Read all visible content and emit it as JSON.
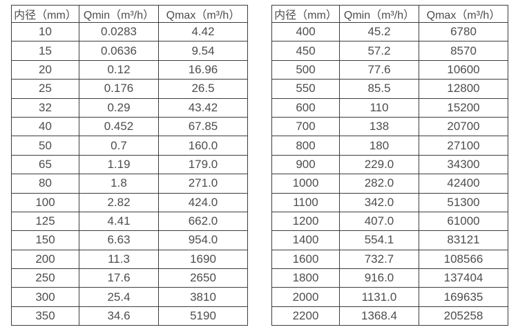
{
  "page": {
    "background": "#ffffff",
    "border_color": "#3c3c3c",
    "text_color": "#4d4d4d"
  },
  "chart_data": [
    {
      "type": "table",
      "name": "flow-rate-table-small-diameters",
      "columns": [
        "内径（mm）",
        "Qmin（m³/h）",
        "Qmax（m³/h）"
      ],
      "rows": [
        [
          "10",
          "0.0283",
          "4.42"
        ],
        [
          "15",
          "0.0636",
          "9.54"
        ],
        [
          "20",
          "0.12",
          "16.96"
        ],
        [
          "25",
          "0.176",
          "26.5"
        ],
        [
          "32",
          "0.29",
          "43.42"
        ],
        [
          "40",
          "0.452",
          "67.85"
        ],
        [
          "50",
          "0.7",
          "160.0"
        ],
        [
          "65",
          "1.19",
          "179.0"
        ],
        [
          "80",
          "1.8",
          "271.0"
        ],
        [
          "100",
          "2.82",
          "424.0"
        ],
        [
          "125",
          "4.41",
          "662.0"
        ],
        [
          "150",
          "6.63",
          "954.0"
        ],
        [
          "200",
          "11.3",
          "1690"
        ],
        [
          "250",
          "17.6",
          "2650"
        ],
        [
          "300",
          "25.4",
          "3810"
        ],
        [
          "350",
          "34.6",
          "5190"
        ]
      ]
    },
    {
      "type": "table",
      "name": "flow-rate-table-large-diameters",
      "columns": [
        "内径（mm）",
        "Qmin（m³/h）",
        "Qmax（m³/h）"
      ],
      "rows": [
        [
          "400",
          "45.2",
          "6780"
        ],
        [
          "450",
          "57.2",
          "8570"
        ],
        [
          "500",
          "77.6",
          "10600"
        ],
        [
          "550",
          "85.5",
          "12800"
        ],
        [
          "600",
          "110",
          "15200"
        ],
        [
          "700",
          "138",
          "20700"
        ],
        [
          "800",
          "180",
          "27100"
        ],
        [
          "900",
          "229.0",
          "34300"
        ],
        [
          "1000",
          "282.0",
          "42400"
        ],
        [
          "1100",
          "342.0",
          "51300"
        ],
        [
          "1200",
          "407.0",
          "61000"
        ],
        [
          "1400",
          "554.1",
          "83121"
        ],
        [
          "1600",
          "732.7",
          "108566"
        ],
        [
          "1800",
          "916.0",
          "137404"
        ],
        [
          "2000",
          "1131.0",
          "169635"
        ],
        [
          "2200",
          "1368.4",
          "205258"
        ]
      ]
    }
  ]
}
